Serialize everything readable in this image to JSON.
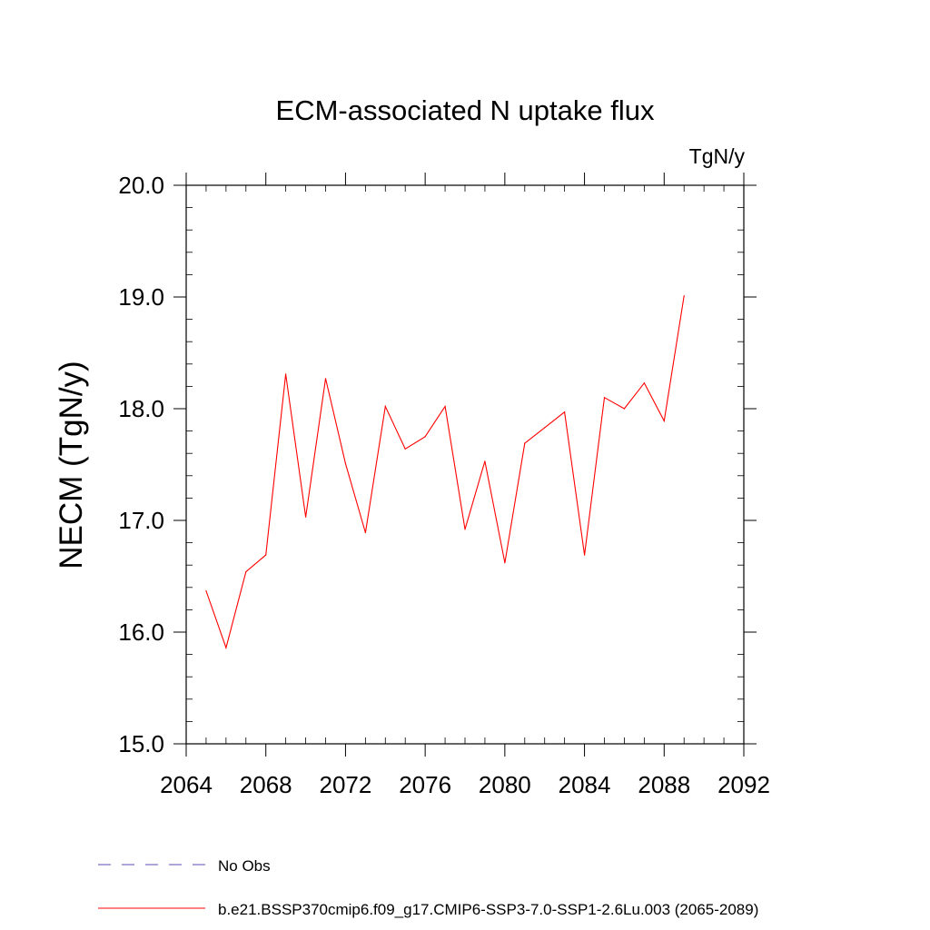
{
  "chart_data": {
    "type": "line",
    "title": "ECM-associated N uptake flux",
    "units": "TgN/y",
    "ylabel": "NECM  (TgN/y)",
    "xlabel": "",
    "xlim": [
      2064,
      2092
    ],
    "ylim": [
      15.0,
      20.0
    ],
    "x_ticks": [
      "2064",
      "2068",
      "2072",
      "2076",
      "2080",
      "2084",
      "2088",
      "2092"
    ],
    "y_ticks": [
      "15.0",
      "16.0",
      "17.0",
      "18.0",
      "19.0",
      "20.0"
    ],
    "grid": false,
    "legend_placement": "bottom",
    "series": [
      {
        "name": "b.e21.BSSP370cmip6.f09_g17.CMIP6-SSP3-7.0-SSP1-2.6Lu.003 (2065-2089)",
        "color": "#ff0000",
        "style": "solid",
        "x": [
          2065,
          2066,
          2067,
          2068,
          2069,
          2070,
          2071,
          2072,
          2073,
          2074,
          2075,
          2076,
          2077,
          2078,
          2079,
          2080,
          2081,
          2082,
          2083,
          2084,
          2085,
          2086,
          2087,
          2088,
          2089
        ],
        "values": [
          16.37,
          15.86,
          16.54,
          16.69,
          18.31,
          17.03,
          18.27,
          17.51,
          16.89,
          18.02,
          17.64,
          17.75,
          18.02,
          16.92,
          17.53,
          16.62,
          17.69,
          17.83,
          17.97,
          16.69,
          18.1,
          18.0,
          18.23,
          17.89,
          19.01
        ]
      }
    ],
    "legend": [
      {
        "label": "No Obs",
        "color": "#5a4fb0",
        "style": "dashed"
      },
      {
        "label": "b.e21.BSSP370cmip6.f09_g17.CMIP6-SSP3-7.0-SSP1-2.6Lu.003 (2065-2089)",
        "color": "#ff0000",
        "style": "solid"
      }
    ]
  }
}
